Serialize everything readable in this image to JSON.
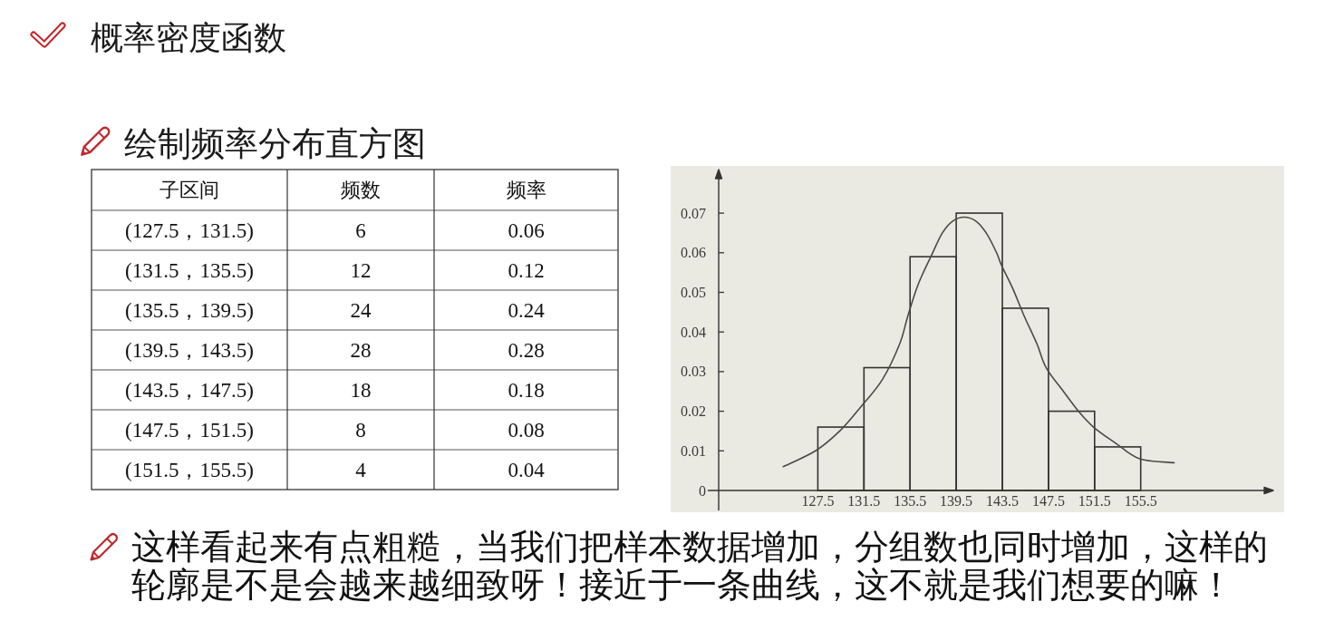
{
  "chart_data": [
    {
      "type": "other",
      "title": "概率密度函数",
      "subtitle": "绘制频率分布直方图",
      "ylabel": "子区间",
      "categories": [
        "(127.5，131.5)",
        "(131.5，135.5)",
        "(135.5，139.5)",
        "(139.5，143.5)",
        "(143.5，147.5)",
        "(147.5，151.5)",
        "(151.5，155.5)"
      ],
      "series": [
        {
          "name": "频数",
          "values": [
            6,
            12,
            24,
            28,
            18,
            8,
            4
          ]
        },
        {
          "name": "频率",
          "values": [
            0.06,
            0.12,
            0.24,
            0.28,
            0.18,
            0.08,
            0.04
          ]
        }
      ],
      "data_labels": true
    },
    {
      "type": "histogram",
      "series": [
        {
          "type": "histogram",
          "bins": [
            127.5,
            131.5,
            135.5,
            139.5,
            143.5,
            147.5,
            151.5,
            155.5
          ],
          "values": [
            0.016,
            0.031,
            0.059,
            0.07,
            0.046,
            0.02,
            0.011
          ],
          "color": "#333333"
        },
        {
          "type": "line",
          "x": [
            124.5,
            127.3,
            129.4,
            131.2,
            133.1,
            134.6,
            135.3,
            136.2,
            137.3,
            138.3,
            139.2,
            140.2,
            141.2,
            142.1,
            143.0,
            143.4,
            144.4,
            145.4,
            146.5,
            147.3,
            148.8,
            150.1,
            151.4,
            153.3,
            155.4,
            158.4
          ],
          "values": [
            0.006,
            0.01,
            0.015,
            0.021,
            0.028,
            0.037,
            0.044,
            0.052,
            0.059,
            0.065,
            0.068,
            0.069,
            0.068,
            0.065,
            0.06,
            0.057,
            0.051,
            0.044,
            0.037,
            0.031,
            0.025,
            0.02,
            0.016,
            0.012,
            0.008,
            0.007
          ],
          "color": "#4a4a4a"
        }
      ],
      "xlim": [
        118.9,
        167
      ],
      "ylim": [
        0,
        0.081
      ],
      "xticks": [
        127.5,
        131.5,
        135.5,
        139.5,
        143.5,
        147.5,
        151.5,
        155.5
      ],
      "yticks": [
        0,
        0.01,
        0.02,
        0.03,
        0.04,
        0.05,
        0.06,
        0.07
      ],
      "grid": false,
      "annotations": [
        "这样看起来有点粗糙，当我们把样本数据增加，分组数也同时增加，这样的轮廓是不是会越来越细致呀！接近于一条曲线，这不就是我们想要的嘛！"
      ]
    }
  ]
}
